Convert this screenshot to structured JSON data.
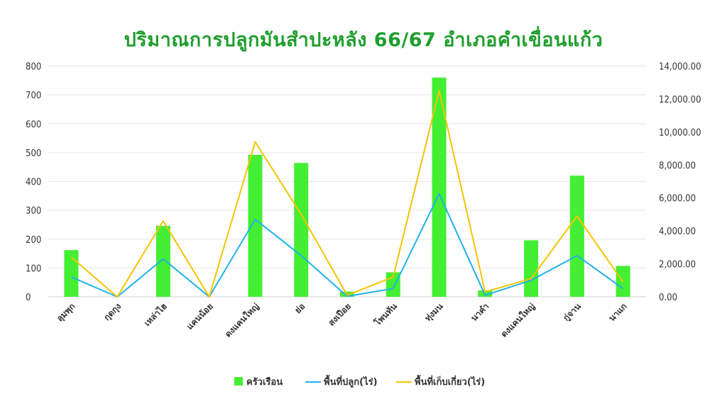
{
  "chart_data": {
    "type": "bar",
    "title": "ปริมาณการปลูกมันสำปะหลัง 66/67 อำเภอคำเขื่อนแก้ว",
    "categories": [
      "ลุมพุก",
      "กุดกุง",
      "เหล่าไฮ",
      "แคนน้อย",
      "ดงแคนใหญ่",
      "ย่อ",
      "สงเปือย",
      "โพนทัน",
      "ทุ่งมน",
      "นาคำ",
      "ดงแคนใหญ่",
      "กู่จาน",
      "นาแก"
    ],
    "series": [
      {
        "name": "ครัวเรือน",
        "type": "bar",
        "axis": "left",
        "color": "#44ee33",
        "values": [
          162,
          0,
          246,
          0,
          492,
          464,
          18,
          85,
          760,
          22,
          196,
          420,
          107
        ]
      },
      {
        "name": "พื้นที่ปลูก(ไร่)",
        "type": "line",
        "axis": "right",
        "color": "#1fb3e6",
        "values": [
          1200,
          0,
          2300,
          0,
          4700,
          2500,
          30,
          500,
          6250,
          100,
          1000,
          2500,
          500
        ]
      },
      {
        "name": "พื้นที่เก็บเกี่ยว(ไร่)",
        "type": "line",
        "axis": "right",
        "color": "#f5c400",
        "values": [
          2400,
          0,
          4600,
          0,
          9400,
          5000,
          100,
          1200,
          12500,
          300,
          1100,
          4900,
          900
        ]
      }
    ],
    "y_left": {
      "min": 0,
      "max": 800,
      "ticks": [
        "0",
        "100",
        "200",
        "300",
        "400",
        "500",
        "600",
        "700",
        "800"
      ]
    },
    "y_right": {
      "min": 0,
      "max": 14000,
      "ticks": [
        "0.00",
        "2,000.00",
        "4,000.00",
        "6,000.00",
        "8,000.00",
        "10,000.00",
        "12,000.00",
        "14,000.00"
      ]
    },
    "grid": true,
    "legend_position": "bottom",
    "title_color": "#1e9e2e"
  }
}
